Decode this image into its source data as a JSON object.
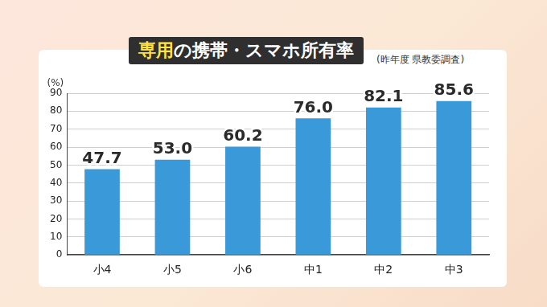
{
  "chart_data": {
    "type": "bar",
    "title": "専用の携帯・スマホ所有率",
    "subtitle": "(昨年度 県教委調査)",
    "y_label": "(%)",
    "categories": [
      "小4",
      "小5",
      "小6",
      "中1",
      "中2",
      "中3"
    ],
    "values": [
      47.7,
      53.0,
      60.2,
      76.0,
      82.1,
      85.6
    ],
    "value_labels": [
      "47.7",
      "53.0",
      "60.2",
      "76.0",
      "82.1",
      "85.6"
    ],
    "color": "#3a9ad9",
    "ylim": [
      0,
      90
    ],
    "yticks": [
      0,
      10,
      20,
      30,
      40,
      50,
      60,
      70,
      80,
      90
    ],
    "grid": true,
    "data_labels": true
  }
}
